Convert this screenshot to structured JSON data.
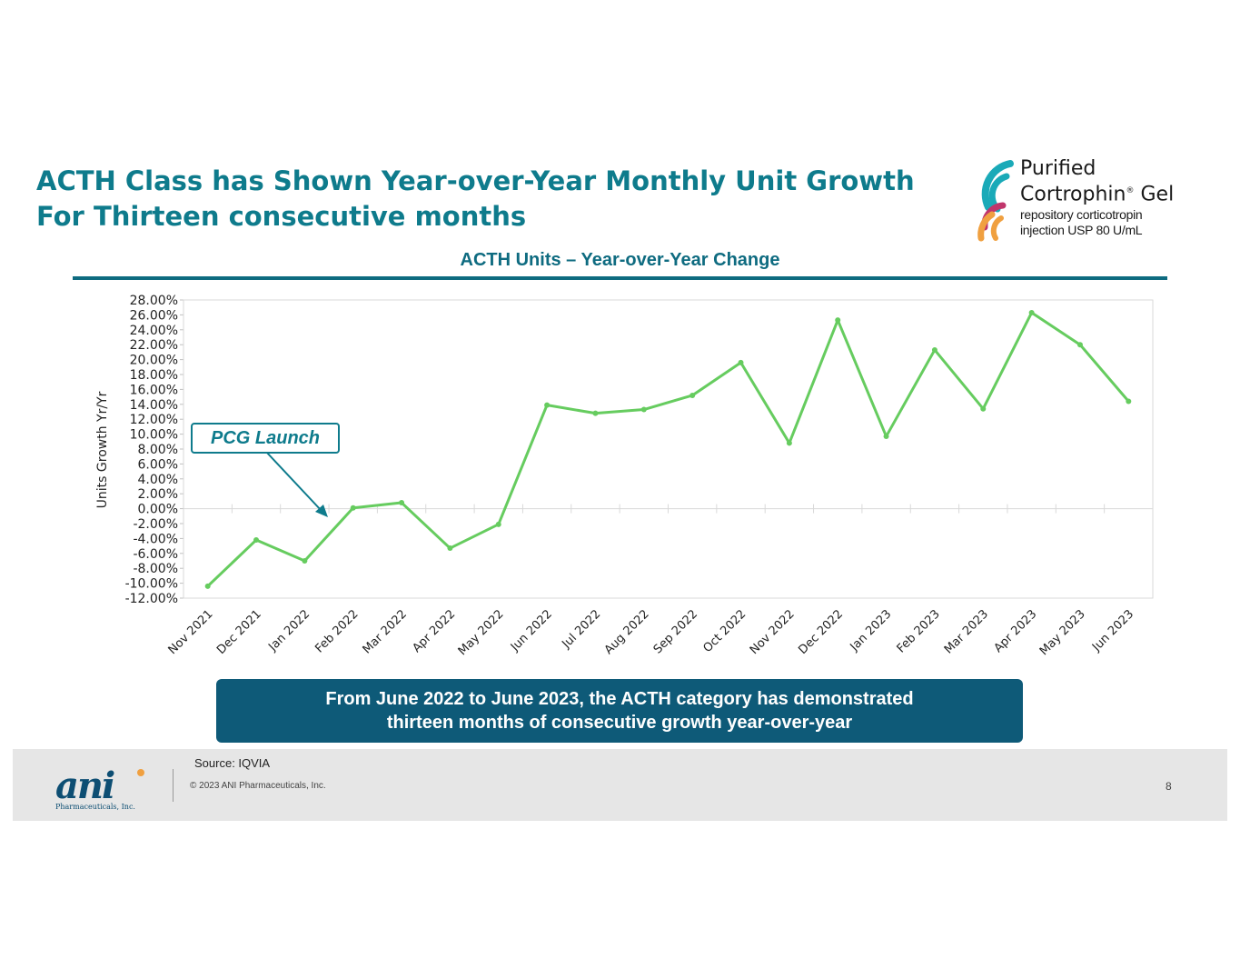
{
  "slide": {
    "title_line1": "ACTH Class has Shown Year-over-Year Monthly Unit Growth",
    "title_line2": "For Thirteen consecutive months",
    "callout": "PCG Launch",
    "banner_line1": "From June 2022 to June 2023, the ACTH category has demonstrated",
    "banner_line2": "thirteen months of consecutive growth year-over-year",
    "source": "Source: IQVIA",
    "copyright": "© 2023 ANI Pharmaceuticals, Inc.",
    "page_number": "8"
  },
  "brand": {
    "product_line1": "Purified",
    "product_line2": "Cortrophin",
    "product_mark": "®",
    "product_line2b": "Gel",
    "product_desc1": "repository corticotropin",
    "product_desc2": "injection USP 80 U/mL",
    "company_logo_text": "ani",
    "company_logo_sub": "Pharmaceuticals, Inc.",
    "colors": {
      "title_teal": "#0e7b8c",
      "banner_navy": "#0e5a78",
      "line_green": "#66cc5f",
      "logo_teal": "#1aaab8",
      "logo_magenta": "#c0356b",
      "logo_orange": "#f0a040"
    }
  },
  "chart_data": {
    "type": "line",
    "title": "ACTH Units – Year-over-Year Change",
    "xlabel": "",
    "ylabel": "Units Growth Yr/Yr",
    "ylim": [
      -12,
      28
    ],
    "ytick_step": 2,
    "y_format": "percent_2dp",
    "grid": false,
    "legend": "none",
    "categories": [
      "Nov 2021",
      "Dec 2021",
      "Jan 2022",
      "Feb 2022",
      "Mar 2022",
      "Apr 2022",
      "May 2022",
      "Jun 2022",
      "Jul 2022",
      "Aug 2022",
      "Sep 2022",
      "Oct 2022",
      "Nov 2022",
      "Dec 2022",
      "Jan 2023",
      "Feb 2023",
      "Mar 2023",
      "Apr 2023",
      "May 2023",
      "Jun 2023"
    ],
    "series": [
      {
        "values": [
          -10.4,
          -4.2,
          -7.0,
          0.1,
          0.8,
          -5.3,
          -2.1,
          13.9,
          12.8,
          13.3,
          15.2,
          19.6,
          8.8,
          25.3,
          9.7,
          21.3,
          13.4,
          26.3,
          22.0,
          14.4
        ]
      }
    ]
  }
}
